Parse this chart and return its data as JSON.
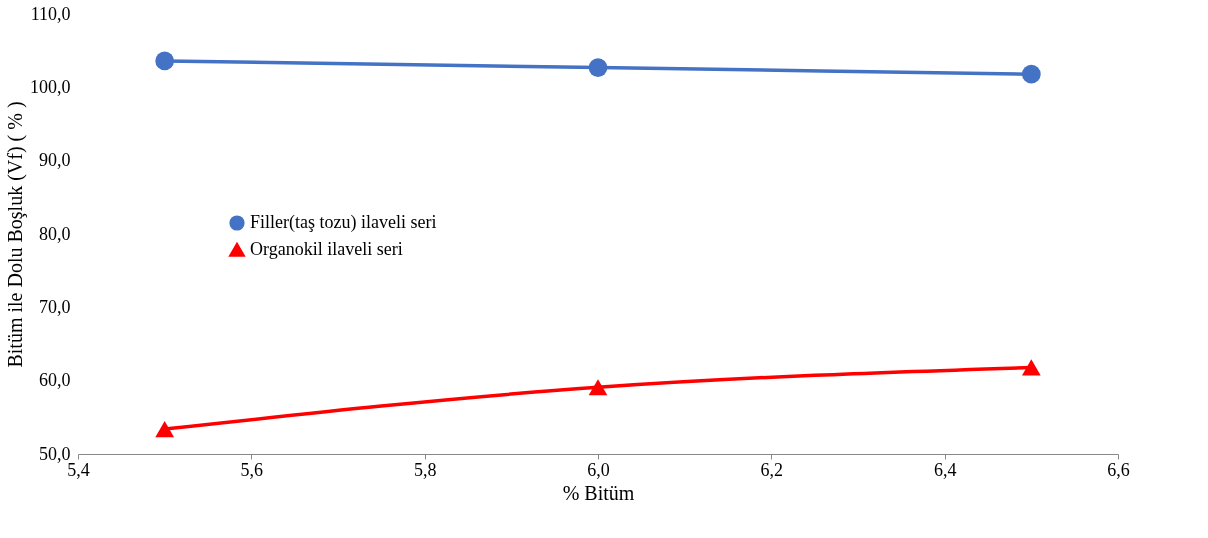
{
  "chart_data": {
    "type": "line",
    "xlabel": "% Bitüm",
    "ylabel": "Bitüm ile Dolu Boşluk (Vf) ( % )",
    "x": [
      5.5,
      6.0,
      6.5
    ],
    "series": [
      {
        "name": "Filler(taş tozu) ilaveli seri",
        "color": "#4472c4",
        "values": [
          103.6,
          102.7,
          101.8
        ],
        "marker": "circle"
      },
      {
        "name": "Organokil ilaveli seri",
        "color": "#ff0000",
        "values": [
          53.4,
          59.1,
          61.8
        ],
        "marker": "triangle"
      }
    ],
    "xlim": [
      5.4,
      6.6
    ],
    "xticks": [
      {
        "value": 5.4,
        "label": "5,4"
      },
      {
        "value": 5.6,
        "label": "5,6"
      },
      {
        "value": 5.8,
        "label": "5,8"
      },
      {
        "value": 6.0,
        "label": "6,0"
      },
      {
        "value": 6.2,
        "label": "6,2"
      },
      {
        "value": 6.4,
        "label": "6,4"
      },
      {
        "value": 6.6,
        "label": "6,6"
      }
    ],
    "ylim": [
      50,
      110
    ],
    "yticks": [
      {
        "value": 50,
        "label": "50,0"
      },
      {
        "value": 60,
        "label": "60,0"
      },
      {
        "value": 70,
        "label": "70,0"
      },
      {
        "value": 80,
        "label": "80,0"
      },
      {
        "value": 90,
        "label": "90,0"
      },
      {
        "value": 100,
        "label": "100,0"
      },
      {
        "value": 110,
        "label": "110,0"
      }
    ],
    "grid": false,
    "legend": "left",
    "line_style": "solid"
  }
}
